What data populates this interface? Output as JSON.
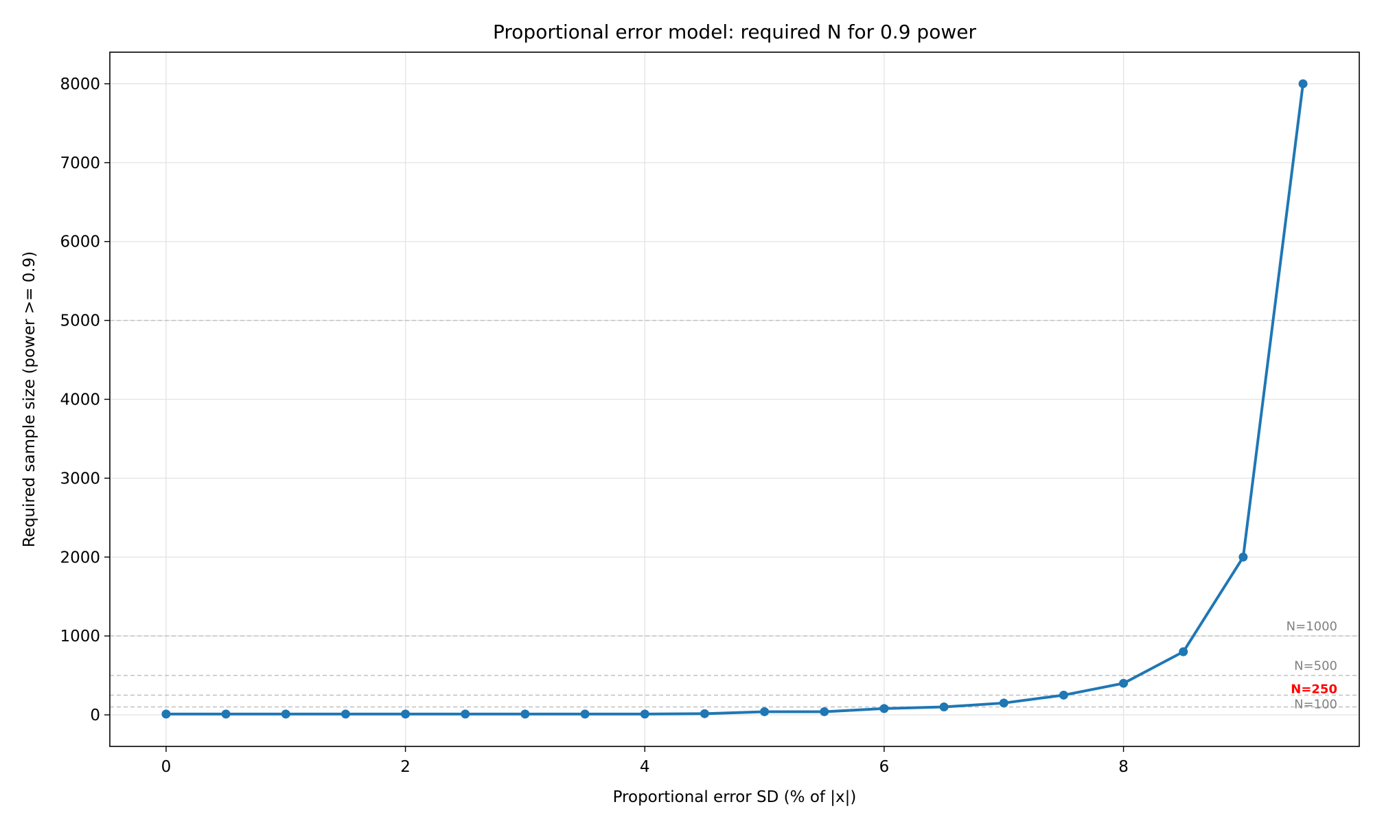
{
  "chart_data": {
    "type": "line",
    "title": "Proportional error model: required N for 0.9 power",
    "xlabel": "Proportional error SD (% of |x|)",
    "ylabel": "Required sample size (power >= 0.9)",
    "xlim": [
      -0.47,
      9.97
    ],
    "ylim": [
      -400,
      8400
    ],
    "xticks": [
      0,
      2,
      4,
      6,
      8
    ],
    "yticks": [
      0,
      1000,
      2000,
      3000,
      4000,
      5000,
      6000,
      7000,
      8000
    ],
    "grid": true,
    "series": [
      {
        "color": "#1f77b4",
        "x": [
          0,
          0.5,
          1,
          1.5,
          2,
          2.5,
          3,
          3.5,
          4,
          4.5,
          5,
          5.5,
          6,
          6.5,
          7,
          7.5,
          8,
          8.5,
          9,
          9.5
        ],
        "y": [
          10,
          10,
          10,
          10,
          10,
          10,
          10,
          10,
          10,
          15,
          40,
          40,
          80,
          100,
          150,
          250,
          400,
          800,
          2000,
          8000
        ]
      }
    ],
    "reference_lines": [
      {
        "y": 5000,
        "label": "",
        "color": "#b0b0b0",
        "bold": false
      },
      {
        "y": 1000,
        "label": "N=1000",
        "color": "#808080",
        "bold": false
      },
      {
        "y": 500,
        "label": "N=500",
        "color": "#808080",
        "bold": false
      },
      {
        "y": 250,
        "label": "N=250",
        "color": "#ff0000",
        "bold": true
      },
      {
        "y": 100,
        "label": "N=100",
        "color": "#808080",
        "bold": false
      }
    ]
  }
}
